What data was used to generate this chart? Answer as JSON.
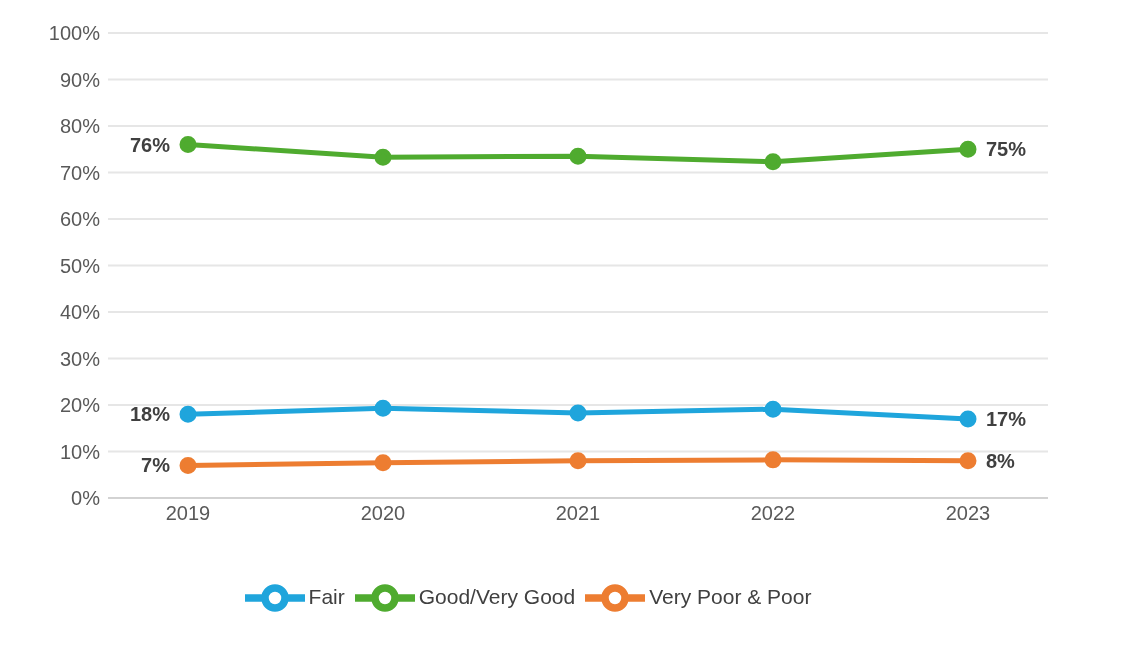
{
  "chart_data": {
    "type": "line",
    "categories": [
      "2019",
      "2020",
      "2021",
      "2022",
      "2023"
    ],
    "series": [
      {
        "name": "Very Poor & Poor",
        "color": "#ed7d31",
        "values": [
          7,
          7.6,
          8,
          8.2,
          8
        ],
        "value_labels": [
          "7%",
          null,
          null,
          null,
          "8%"
        ]
      },
      {
        "name": "Fair",
        "color": "#1fa5dc",
        "values": [
          18,
          19.3,
          18.3,
          19.1,
          17
        ],
        "value_labels": [
          "18%",
          null,
          null,
          null,
          "17%"
        ]
      },
      {
        "name": "Good/Very Good",
        "color": "#4fab2f",
        "values": [
          76,
          73.3,
          73.5,
          72.3,
          75
        ],
        "value_labels": [
          "76%",
          null,
          null,
          null,
          "75%"
        ]
      }
    ],
    "ylim": [
      0,
      100
    ],
    "yticks": [
      {
        "value": 0,
        "label": "0%"
      },
      {
        "value": 10,
        "label": "10%"
      },
      {
        "value": 20,
        "label": "20%"
      },
      {
        "value": 30,
        "label": "30%"
      },
      {
        "value": 40,
        "label": "40%"
      },
      {
        "value": 50,
        "label": "50%"
      },
      {
        "value": 60,
        "label": "60%"
      },
      {
        "value": 70,
        "label": "70%"
      },
      {
        "value": 80,
        "label": "80%"
      },
      {
        "value": 90,
        "label": "90%"
      },
      {
        "value": 100,
        "label": "100%"
      }
    ],
    "grid": "y",
    "legend": "bottom",
    "marker": "circle",
    "line_style": "solid"
  }
}
